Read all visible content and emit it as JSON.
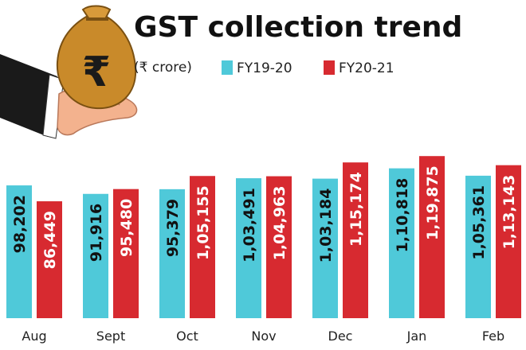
{
  "colors": {
    "fy19": "#4fc9d9",
    "fy20": "#d72a30",
    "title": "#111111",
    "axis": "#222222",
    "bag": "#c98a2a",
    "hand": "#f3b28e",
    "sleeve": "#1a1a1a"
  },
  "illustration": {
    "icon": "money-bag-in-hand-icon",
    "symbol": "₹"
  },
  "chart_data": {
    "type": "bar",
    "title": "GST collection trend",
    "subtitle": "(₹ crore)",
    "categories": [
      "Aug",
      "Sept",
      "Oct",
      "Nov",
      "Dec",
      "Jan",
      "Feb"
    ],
    "series": [
      {
        "name": "FY19-20",
        "values": [
          98202,
          91916,
          95379,
          103491,
          103184,
          110818,
          105361
        ],
        "labels": [
          "98,202",
          "91,916",
          "95,379",
          "1,03,491",
          "1,03,184",
          "1,10,818",
          "1,05,361"
        ]
      },
      {
        "name": "FY20-21",
        "values": [
          86449,
          95480,
          105155,
          104963,
          115174,
          119875,
          113143
        ],
        "labels": [
          "86,449",
          "95,480",
          "1,05,155",
          "1,04,963",
          "1,15,174",
          "1,19,875",
          "1,13,143"
        ]
      }
    ],
    "legend_position": "top",
    "grid": false,
    "ylim": [
      0,
      123000
    ],
    "xlabel": "",
    "ylabel": ""
  }
}
